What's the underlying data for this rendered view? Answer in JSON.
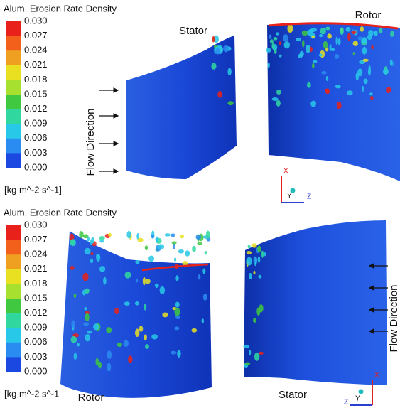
{
  "panels": [
    {
      "legend": {
        "title": "Alum. Erosion Rate Density",
        "ticks": [
          "0.030",
          "0.027",
          "0.024",
          "0.021",
          "0.018",
          "0.015",
          "0.012",
          "0.009",
          "0.006",
          "0.003",
          "0.000"
        ],
        "unit": "[kg m^-2 s^-1]"
      },
      "labels": {
        "stator": "Stator",
        "rotor": "Rotor",
        "flow": "Flow Direction"
      },
      "axes": {
        "x": "X",
        "y": "Y",
        "z": "Z"
      }
    },
    {
      "legend": {
        "title": "Alum. Erosion Rate Density",
        "ticks": [
          "0.030",
          "0.027",
          "0.024",
          "0.021",
          "0.018",
          "0.015",
          "0.012",
          "0.009",
          "0.006",
          "0.003",
          "0.000"
        ],
        "unit": "[kg m^-2 s^-1"
      },
      "labels": {
        "stator": "Stator",
        "rotor": "Rotor",
        "flow": "Flow Direction"
      },
      "axes": {
        "x": "X",
        "y": "Y",
        "z": "Z"
      }
    }
  ]
}
